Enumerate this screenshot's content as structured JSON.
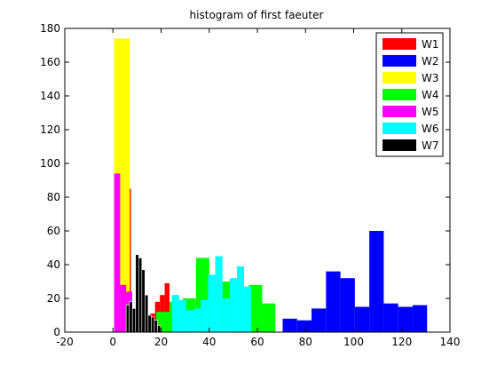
{
  "chart_data": {
    "type": "bar",
    "title": "histogram of first faeuter",
    "xlim": [
      -20,
      140
    ],
    "ylim": [
      0,
      180
    ],
    "xticks": [
      -20,
      0,
      20,
      40,
      60,
      80,
      100,
      120,
      140
    ],
    "yticks": [
      0,
      20,
      40,
      60,
      80,
      100,
      120,
      140,
      160,
      180
    ],
    "grid": false,
    "legend_position": "top-right",
    "series": [
      {
        "name": "W1",
        "color": "#ff0000",
        "bins": [
          {
            "x0": 5.5,
            "x1": 7.5,
            "count": 85
          },
          {
            "x0": 7.5,
            "x1": 9.5,
            "count": 12
          },
          {
            "x0": 9.5,
            "x1": 11.5,
            "count": 10
          },
          {
            "x0": 11.5,
            "x1": 13.5,
            "count": 8
          },
          {
            "x0": 13.5,
            "x1": 15.5,
            "count": 5
          },
          {
            "x0": 15.5,
            "x1": 17.5,
            "count": 11
          },
          {
            "x0": 17.5,
            "x1": 19.5,
            "count": 18
          },
          {
            "x0": 19.5,
            "x1": 21.5,
            "count": 22
          },
          {
            "x0": 21.5,
            "x1": 23.5,
            "count": 29
          }
        ]
      },
      {
        "name": "W2",
        "color": "#0000ff",
        "bins": [
          {
            "x0": 70.5,
            "x1": 76.5,
            "count": 8
          },
          {
            "x0": 76.5,
            "x1": 82.5,
            "count": 7
          },
          {
            "x0": 82.5,
            "x1": 88.5,
            "count": 14
          },
          {
            "x0": 88.5,
            "x1": 94.5,
            "count": 36
          },
          {
            "x0": 94.5,
            "x1": 100.5,
            "count": 32
          },
          {
            "x0": 100.5,
            "x1": 106.5,
            "count": 15
          },
          {
            "x0": 106.5,
            "x1": 112.5,
            "count": 60
          },
          {
            "x0": 112.5,
            "x1": 118.5,
            "count": 17
          },
          {
            "x0": 118.5,
            "x1": 124.5,
            "count": 15
          },
          {
            "x0": 124.5,
            "x1": 130.5,
            "count": 16
          }
        ]
      },
      {
        "name": "W3",
        "color": "#ffff00",
        "bins": [
          {
            "x0": 0.5,
            "x1": 7.0,
            "count": 174
          },
          {
            "x0": 7.0,
            "x1": 13.5,
            "count": 0
          }
        ]
      },
      {
        "name": "W4",
        "color": "#00ff00",
        "bins": [
          {
            "x0": 18.0,
            "x1": 23.5,
            "count": 12
          },
          {
            "x0": 23.5,
            "x1": 29.0,
            "count": 18
          },
          {
            "x0": 29.0,
            "x1": 34.5,
            "count": 20
          },
          {
            "x0": 34.5,
            "x1": 40.0,
            "count": 44
          },
          {
            "x0": 40.0,
            "x1": 45.5,
            "count": 30
          },
          {
            "x0": 45.5,
            "x1": 51.0,
            "count": 30
          },
          {
            "x0": 51.0,
            "x1": 56.5,
            "count": 20
          },
          {
            "x0": 56.5,
            "x1": 62.0,
            "count": 28
          },
          {
            "x0": 62.0,
            "x1": 67.5,
            "count": 17
          }
        ]
      },
      {
        "name": "W5",
        "color": "#ff00ff",
        "bins": [
          {
            "x0": 0.5,
            "x1": 3.0,
            "count": 94
          },
          {
            "x0": 3.0,
            "x1": 5.5,
            "count": 28
          },
          {
            "x0": 5.5,
            "x1": 8.0,
            "count": 24
          }
        ]
      },
      {
        "name": "W6",
        "color": "#00ffff",
        "bins": [
          {
            "x0": 24.5,
            "x1": 27.5,
            "count": 22
          },
          {
            "x0": 27.5,
            "x1": 30.5,
            "count": 19
          },
          {
            "x0": 30.5,
            "x1": 33.5,
            "count": 13
          },
          {
            "x0": 33.5,
            "x1": 36.5,
            "count": 14
          },
          {
            "x0": 36.5,
            "x1": 39.5,
            "count": 19
          },
          {
            "x0": 39.5,
            "x1": 42.5,
            "count": 34
          },
          {
            "x0": 42.5,
            "x1": 45.5,
            "count": 45
          },
          {
            "x0": 45.5,
            "x1": 48.5,
            "count": 20
          },
          {
            "x0": 48.5,
            "x1": 51.5,
            "count": 32
          },
          {
            "x0": 51.5,
            "x1": 54.5,
            "count": 39
          },
          {
            "x0": 54.5,
            "x1": 57.5,
            "count": 27
          }
        ]
      },
      {
        "name": "W7",
        "color": "#000000",
        "bins": [
          {
            "x0": 5.5,
            "x1": 6.8,
            "count": 16
          },
          {
            "x0": 6.8,
            "x1": 8.1,
            "count": 18
          },
          {
            "x0": 8.1,
            "x1": 9.4,
            "count": 14
          },
          {
            "x0": 9.4,
            "x1": 10.7,
            "count": 46
          },
          {
            "x0": 10.7,
            "x1": 12.0,
            "count": 44
          },
          {
            "x0": 12.0,
            "x1": 13.3,
            "count": 37
          },
          {
            "x0": 13.3,
            "x1": 14.6,
            "count": 22
          },
          {
            "x0": 14.6,
            "x1": 15.9,
            "count": 10
          },
          {
            "x0": 15.9,
            "x1": 17.2,
            "count": 9
          },
          {
            "x0": 17.2,
            "x1": 18.5,
            "count": 7
          },
          {
            "x0": 18.5,
            "x1": 19.8,
            "count": 4
          }
        ]
      }
    ]
  }
}
